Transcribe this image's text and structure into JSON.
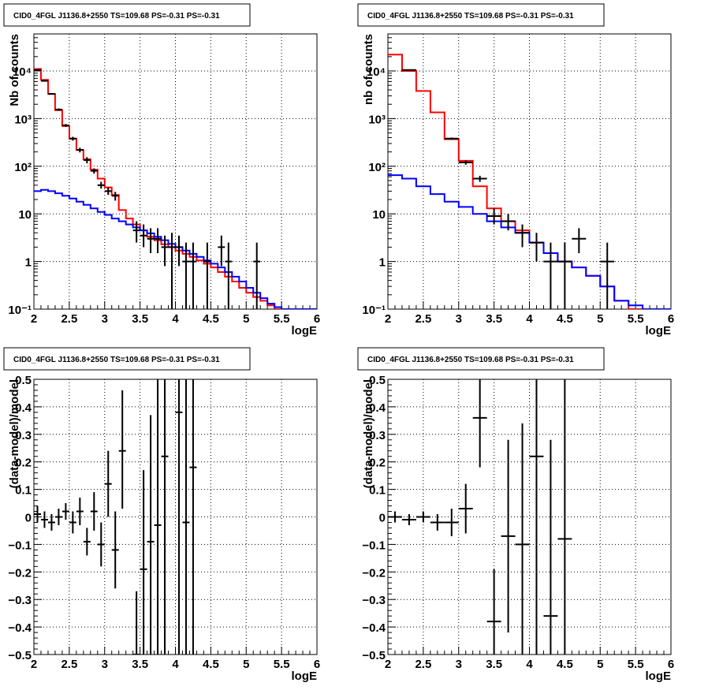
{
  "chart_data": [
    {
      "panel": "top-left",
      "type": "step-histogram",
      "title": "CID0_4FGL J1136.8+2550 TS=109.68 PS=-0.31 PS=-0.31",
      "xlabel": "logE",
      "ylabel": "Nb of counts",
      "xlim": [
        2,
        6
      ],
      "ylim": [
        0.1,
        60000
      ],
      "yscale": "log",
      "grid": true,
      "xticks": [
        "2",
        "2.5",
        "3",
        "3.5",
        "4",
        "4.5",
        "5",
        "5.5",
        "6"
      ],
      "yticks": [
        {
          "v": 0.1,
          "label": "10⁻¹"
        },
        {
          "v": 1,
          "label": "1"
        },
        {
          "v": 10,
          "label": "10"
        },
        {
          "v": 100,
          "label": "10²"
        },
        {
          "v": 1000,
          "label": "10³"
        },
        {
          "v": 10000,
          "label": "10⁴"
        }
      ],
      "bin_edges": [
        2.0,
        2.1,
        2.2,
        2.3,
        2.4,
        2.5,
        2.6,
        2.7,
        2.8,
        2.9,
        3.0,
        3.1,
        3.2,
        3.3,
        3.4,
        3.5,
        3.6,
        3.7,
        3.8,
        3.9,
        4.0,
        4.1,
        4.2,
        4.3,
        4.4,
        4.5,
        4.6,
        4.7,
        4.8,
        4.9,
        5.0,
        5.1,
        5.2,
        5.3,
        5.4,
        5.5,
        5.6,
        5.7,
        5.8,
        5.9,
        6.0
      ],
      "series": [
        {
          "color": "#ff0000",
          "values": [
            11000,
            6500,
            3300,
            1500,
            700,
            380,
            220,
            140,
            85,
            55,
            36,
            25,
            12,
            8,
            6,
            4.5,
            3.3,
            2.8,
            2.3,
            2.0,
            1.7,
            1.45,
            1.25,
            1.05,
            0.9,
            0.75,
            0.6,
            0.48,
            0.38,
            0.28,
            0.22,
            0.18,
            0.15,
            0.12,
            0.1,
            0.1,
            0.1,
            0.1,
            0.1,
            0.1
          ]
        },
        {
          "color": "#0000ff",
          "values": [
            30,
            32,
            30,
            27,
            24,
            21,
            18,
            15.5,
            13,
            11,
            9.5,
            8,
            7,
            6,
            5.2,
            4.5,
            3.9,
            3.3,
            2.8,
            2.35,
            2.0,
            1.7,
            1.45,
            1.25,
            1.05,
            0.9,
            0.75,
            0.6,
            0.48,
            0.38,
            0.28,
            0.22,
            0.17,
            0.13,
            0.11,
            0.1,
            0.1,
            0.1,
            0.1,
            0.1
          ]
        }
      ],
      "points": [
        {
          "x": 2.05,
          "y": 10500,
          "lo": 10300,
          "hi": 10700
        },
        {
          "x": 2.15,
          "y": 6200,
          "lo": 6050,
          "hi": 6350
        },
        {
          "x": 2.25,
          "y": 3300,
          "lo": 3190,
          "hi": 3410
        },
        {
          "x": 2.35,
          "y": 1550,
          "lo": 1470,
          "hi": 1630
        },
        {
          "x": 2.45,
          "y": 720,
          "lo": 670,
          "hi": 770
        },
        {
          "x": 2.55,
          "y": 380,
          "lo": 345,
          "hi": 415
        },
        {
          "x": 2.65,
          "y": 220,
          "lo": 195,
          "hi": 245
        },
        {
          "x": 2.75,
          "y": 135,
          "lo": 115,
          "hi": 155
        },
        {
          "x": 2.85,
          "y": 80,
          "lo": 70,
          "hi": 90
        },
        {
          "x": 2.95,
          "y": 40,
          "lo": 34,
          "hi": 47
        },
        {
          "x": 3.05,
          "y": 30,
          "lo": 25,
          "hi": 36
        },
        {
          "x": 3.15,
          "y": 24,
          "lo": 19,
          "hi": 29
        },
        {
          "x": 3.45,
          "y": 4.5,
          "lo": 2.5,
          "hi": 7
        },
        {
          "x": 3.55,
          "y": 3.5,
          "lo": 2,
          "hi": 6
        },
        {
          "x": 3.65,
          "y": 3,
          "lo": 1.5,
          "hi": 5
        },
        {
          "x": 3.75,
          "y": 3,
          "lo": 1.5,
          "hi": 5
        },
        {
          "x": 3.85,
          "y": 2,
          "lo": 0.8,
          "hi": 3.5
        },
        {
          "x": 3.95,
          "y": 2,
          "lo": 0.1,
          "hi": 4
        },
        {
          "x": 4.05,
          "y": 2,
          "lo": 0.8,
          "hi": 3.5
        },
        {
          "x": 4.15,
          "y": 1,
          "lo": 0.1,
          "hi": 2.5
        },
        {
          "x": 4.25,
          "y": 1,
          "lo": 0.1,
          "hi": 2.5
        },
        {
          "x": 4.45,
          "y": 1,
          "lo": 0.1,
          "hi": 2.5
        },
        {
          "x": 4.65,
          "y": 2,
          "lo": 0.8,
          "hi": 3.5
        },
        {
          "x": 4.75,
          "y": 1,
          "lo": 0.1,
          "hi": 2.5
        },
        {
          "x": 5.15,
          "y": 1,
          "lo": 0.1,
          "hi": 2.5
        }
      ]
    },
    {
      "panel": "top-right",
      "type": "step-histogram",
      "title": "CID0_4FGL J1136.8+2550 TS=109.68 PS=-0.31 PS=-0.31",
      "xlabel": "logE",
      "ylabel": "nb of counts",
      "xlim": [
        2,
        6
      ],
      "ylim": [
        0.1,
        60000
      ],
      "yscale": "log",
      "grid": true,
      "xticks": [
        "2",
        "2.5",
        "3",
        "3.5",
        "4",
        "4.5",
        "5",
        "5.5",
        "6"
      ],
      "yticks": [
        {
          "v": 0.1,
          "label": "10⁻¹"
        },
        {
          "v": 1,
          "label": "1"
        },
        {
          "v": 10,
          "label": "10"
        },
        {
          "v": 100,
          "label": "10²"
        },
        {
          "v": 1000,
          "label": "10³"
        },
        {
          "v": 10000,
          "label": "10⁴"
        }
      ],
      "bin_edges": [
        2.0,
        2.2,
        2.4,
        2.6,
        2.8,
        3.0,
        3.2,
        3.4,
        3.6,
        3.8,
        4.0,
        4.2,
        4.4,
        4.6,
        4.8,
        5.0,
        5.2,
        5.4,
        5.6,
        5.8,
        6.0
      ],
      "series": [
        {
          "color": "#ff0000",
          "values": [
            22000,
            10000,
            3800,
            1350,
            370,
            130,
            38,
            13,
            7,
            4.5,
            2.5,
            1.5,
            1.0,
            0.75,
            0.5,
            0.3,
            0.15,
            0.1,
            0.1,
            0.1
          ]
        },
        {
          "color": "#0000ff",
          "values": [
            65,
            55,
            38,
            26,
            18,
            14,
            10,
            7,
            5.2,
            4,
            2.5,
            1.5,
            1.0,
            0.75,
            0.5,
            0.3,
            0.15,
            0.12,
            0.1,
            0.1
          ]
        }
      ],
      "points": [
        {
          "x": 2.3,
          "y": 10500,
          "lo": 10300,
          "hi": 10700
        },
        {
          "x": 2.9,
          "y": 380,
          "lo": 360,
          "hi": 400
        },
        {
          "x": 3.1,
          "y": 120,
          "lo": 108,
          "hi": 132
        },
        {
          "x": 3.3,
          "y": 55,
          "lo": 47,
          "hi": 63
        },
        {
          "x": 3.5,
          "y": 9,
          "lo": 6,
          "hi": 13
        },
        {
          "x": 3.7,
          "y": 7,
          "lo": 4.5,
          "hi": 10
        },
        {
          "x": 3.9,
          "y": 4,
          "lo": 2,
          "hi": 6
        },
        {
          "x": 4.1,
          "y": 2.5,
          "lo": 1,
          "hi": 4
        },
        {
          "x": 4.3,
          "y": 1,
          "lo": 0.1,
          "hi": 2.5
        },
        {
          "x": 4.5,
          "y": 1,
          "lo": 0.1,
          "hi": 2.5
        },
        {
          "x": 4.7,
          "y": 3,
          "lo": 1.5,
          "hi": 5
        },
        {
          "x": 5.1,
          "y": 1,
          "lo": 0.1,
          "hi": 2.5
        }
      ]
    },
    {
      "panel": "bottom-left",
      "type": "scatter",
      "title": "CID0_4FGL J1136.8+2550 TS=109.68 PS=-0.31 PS=-0.31",
      "xlabel": "logE",
      "ylabel": "(data-model)/model",
      "xlim": [
        2,
        6
      ],
      "ylim": [
        -0.5,
        0.5
      ],
      "yscale": "linear",
      "grid": true,
      "xticks": [
        "2",
        "2.5",
        "3",
        "3.5",
        "4",
        "4.5",
        "5",
        "5.5",
        "6"
      ],
      "yticks": [
        {
          "v": -0.5,
          "label": "−0.5"
        },
        {
          "v": -0.4,
          "label": "−0.4"
        },
        {
          "v": -0.3,
          "label": "−0.3"
        },
        {
          "v": -0.2,
          "label": "−0.2"
        },
        {
          "v": -0.1,
          "label": "−0.1"
        },
        {
          "v": 0,
          "label": "0"
        },
        {
          "v": 0.1,
          "label": "0.1"
        },
        {
          "v": 0.2,
          "label": "0.2"
        },
        {
          "v": 0.3,
          "label": "0.3"
        },
        {
          "v": 0.4,
          "label": "0.4"
        },
        {
          "v": 0.5,
          "label": "0.5"
        }
      ],
      "xerr": 0.05,
      "points": [
        {
          "x": 2.05,
          "y": 0.01,
          "lo": -0.02,
          "hi": 0.04
        },
        {
          "x": 2.15,
          "y": -0.01,
          "lo": -0.04,
          "hi": 0.02
        },
        {
          "x": 2.25,
          "y": -0.02,
          "lo": -0.05,
          "hi": 0.01
        },
        {
          "x": 2.35,
          "y": 0.0,
          "lo": -0.03,
          "hi": 0.03
        },
        {
          "x": 2.45,
          "y": 0.02,
          "lo": -0.01,
          "hi": 0.05
        },
        {
          "x": 2.55,
          "y": -0.02,
          "lo": -0.06,
          "hi": 0.02
        },
        {
          "x": 2.65,
          "y": 0.02,
          "lo": -0.03,
          "hi": 0.07
        },
        {
          "x": 2.75,
          "y": -0.09,
          "lo": -0.14,
          "hi": -0.04
        },
        {
          "x": 2.85,
          "y": 0.02,
          "lo": -0.05,
          "hi": 0.09
        },
        {
          "x": 2.95,
          "y": -0.1,
          "lo": -0.18,
          "hi": -0.02
        },
        {
          "x": 3.05,
          "y": 0.12,
          "lo": 0.0,
          "hi": 0.24
        },
        {
          "x": 3.15,
          "y": -0.12,
          "lo": -0.26,
          "hi": 0.02
        },
        {
          "x": 3.25,
          "y": 0.24,
          "lo": 0.03,
          "hi": 0.46
        },
        {
          "x": 3.45,
          "y": -0.5,
          "lo": -0.5,
          "hi": -0.27
        },
        {
          "x": 3.55,
          "y": -0.19,
          "lo": -0.5,
          "hi": 0.17
        },
        {
          "x": 3.65,
          "y": -0.09,
          "lo": -0.5,
          "hi": 0.37
        },
        {
          "x": 3.75,
          "y": -0.03,
          "lo": -0.5,
          "hi": 0.5
        },
        {
          "x": 3.85,
          "y": 0.22,
          "lo": -0.5,
          "hi": 0.5
        },
        {
          "x": 4.05,
          "y": 0.38,
          "lo": -0.5,
          "hi": 0.5
        },
        {
          "x": 4.15,
          "y": -0.02,
          "lo": -0.5,
          "hi": 0.5
        },
        {
          "x": 4.25,
          "y": 0.18,
          "lo": -0.5,
          "hi": 0.5
        }
      ]
    },
    {
      "panel": "bottom-right",
      "type": "scatter",
      "title": "CID0_4FGL J1136.8+2550 TS=109.68 PS=-0.31 PS=-0.31",
      "xlabel": "logE",
      "ylabel": "(data-model)/model",
      "xlim": [
        2,
        6
      ],
      "ylim": [
        -0.5,
        0.5
      ],
      "yscale": "linear",
      "grid": true,
      "xticks": [
        "2",
        "2.5",
        "3",
        "3.5",
        "4",
        "4.5",
        "5",
        "5.5",
        "6"
      ],
      "yticks": [
        {
          "v": -0.5,
          "label": "−0.5"
        },
        {
          "v": -0.4,
          "label": "−0.4"
        },
        {
          "v": -0.3,
          "label": "−0.3"
        },
        {
          "v": -0.2,
          "label": "−0.2"
        },
        {
          "v": -0.1,
          "label": "−0.1"
        },
        {
          "v": 0,
          "label": "0"
        },
        {
          "v": 0.1,
          "label": "0.1"
        },
        {
          "v": 0.2,
          "label": "0.2"
        },
        {
          "v": 0.3,
          "label": "0.3"
        },
        {
          "v": 0.4,
          "label": "0.4"
        },
        {
          "v": 0.5,
          "label": "0.5"
        }
      ],
      "xerr": 0.1,
      "points": [
        {
          "x": 2.1,
          "y": 0.0,
          "lo": -0.02,
          "hi": 0.02
        },
        {
          "x": 2.3,
          "y": -0.01,
          "lo": -0.03,
          "hi": 0.01
        },
        {
          "x": 2.5,
          "y": 0.0,
          "lo": -0.02,
          "hi": 0.02
        },
        {
          "x": 2.7,
          "y": -0.02,
          "lo": -0.05,
          "hi": 0.01
        },
        {
          "x": 2.9,
          "y": -0.02,
          "lo": -0.07,
          "hi": 0.03
        },
        {
          "x": 3.1,
          "y": 0.03,
          "lo": -0.06,
          "hi": 0.12
        },
        {
          "x": 3.3,
          "y": 0.36,
          "lo": 0.18,
          "hi": 0.5
        },
        {
          "x": 3.5,
          "y": -0.38,
          "lo": -0.5,
          "hi": -0.19
        },
        {
          "x": 3.7,
          "y": -0.07,
          "lo": -0.42,
          "hi": 0.28
        },
        {
          "x": 3.9,
          "y": -0.1,
          "lo": -0.5,
          "hi": 0.34
        },
        {
          "x": 4.1,
          "y": 0.22,
          "lo": -0.5,
          "hi": 0.5
        },
        {
          "x": 4.3,
          "y": -0.36,
          "lo": -0.5,
          "hi": 0.28
        },
        {
          "x": 4.5,
          "y": -0.08,
          "lo": -0.5,
          "hi": 0.5
        }
      ]
    }
  ]
}
